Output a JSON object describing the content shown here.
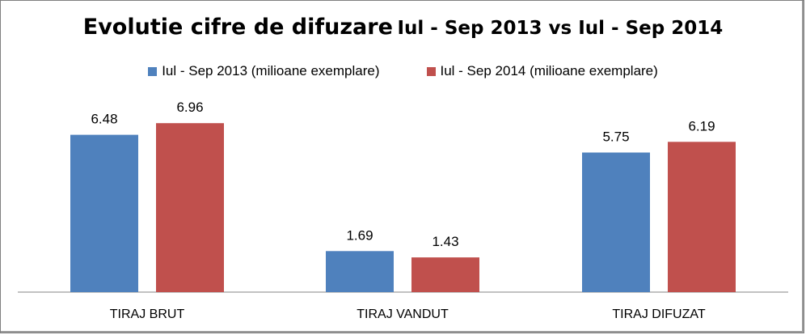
{
  "chart_data": {
    "type": "bar",
    "title_main": "Evolutie cifre de difuzare",
    "title_sub": "Iul - Sep 2013 vs Iul - Sep 2014",
    "categories": [
      "TIRAJ BRUT",
      "TIRAJ VANDUT",
      "TIRAJ DIFUZAT"
    ],
    "series": [
      {
        "name": "Iul - Sep 2013 (milioane exemplare)",
        "values": [
          6.48,
          1.69,
          5.75
        ],
        "color": "#4f81bd"
      },
      {
        "name": "Iul - Sep 2014 (milioane exemplare)",
        "values": [
          6.96,
          1.43,
          6.19
        ],
        "color": "#c0504d"
      }
    ],
    "data_labels": [
      [
        "6.48",
        "1.69",
        "5.75"
      ],
      [
        "6.96",
        "1.43",
        "6.19"
      ]
    ],
    "ylim": [
      0,
      8
    ],
    "grid": false,
    "legend_position": "top"
  }
}
